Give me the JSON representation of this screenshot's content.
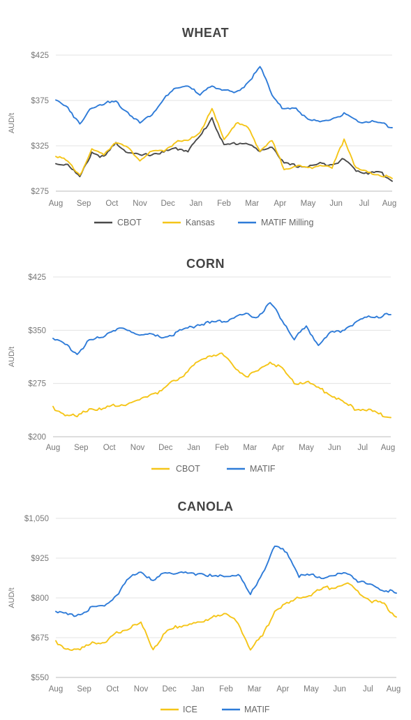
{
  "chart_data": [
    {
      "type": "line",
      "title": "WHEAT",
      "ylabel": "AUD/t",
      "ylim": [
        275,
        425
      ],
      "yticks": [
        275,
        325,
        375,
        425
      ],
      "ytick_labels": [
        "$275",
        "$325",
        "$375",
        "$425"
      ],
      "x_labels": [
        "Aug",
        "Sep",
        "Oct",
        "Nov",
        "Dec",
        "Jan",
        "Feb",
        "Mar",
        "Apr",
        "May",
        "Jun",
        "Jul",
        "Aug"
      ],
      "grid": true,
      "legend_position": "bottom",
      "series": [
        {
          "name": "CBOT",
          "color": "#4a4a4a",
          "values": [
            305,
            305,
            290,
            318,
            312,
            328,
            318,
            314,
            316,
            318,
            322,
            320,
            335,
            356,
            325,
            328,
            328,
            318,
            325,
            305,
            303,
            302,
            305,
            305,
            310,
            298,
            295,
            296,
            286
          ]
        },
        {
          "name": "Kansas",
          "color": "#f5c518",
          "values": [
            315,
            307,
            293,
            320,
            316,
            330,
            322,
            310,
            318,
            320,
            329,
            330,
            340,
            365,
            332,
            350,
            345,
            320,
            330,
            300,
            303,
            300,
            305,
            300,
            333,
            300,
            295,
            293,
            289
          ]
        },
        {
          "name": "MATIF Milling",
          "color": "#2e7bd8",
          "values": [
            375,
            368,
            348,
            368,
            372,
            373,
            362,
            350,
            360,
            377,
            388,
            392,
            380,
            392,
            386,
            383,
            395,
            412,
            382,
            365,
            366,
            355,
            350,
            355,
            360,
            352,
            352,
            350,
            345
          ]
        }
      ]
    },
    {
      "type": "line",
      "title": "CORN",
      "ylabel": "AUD/t",
      "ylim": [
        200,
        425
      ],
      "yticks": [
        200,
        275,
        350,
        425
      ],
      "ytick_labels": [
        "$200",
        "$275",
        "$350",
        "$425"
      ],
      "x_labels": [
        "Aug",
        "Sep",
        "Oct",
        "Nov",
        "Dec",
        "Jan",
        "Feb",
        "Mar",
        "Apr",
        "May",
        "Jun",
        "Jul",
        "Aug"
      ],
      "grid": true,
      "legend_position": "bottom",
      "series": [
        {
          "name": "CBOT",
          "color": "#f5c518",
          "values": [
            240,
            232,
            228,
            240,
            238,
            245,
            245,
            250,
            260,
            264,
            278,
            290,
            305,
            315,
            316,
            300,
            285,
            292,
            307,
            295,
            275,
            278,
            268,
            260,
            248,
            240,
            238,
            232,
            227
          ]
        },
        {
          "name": "MATIF",
          "color": "#2e7bd8",
          "values": [
            340,
            330,
            318,
            335,
            340,
            352,
            350,
            345,
            343,
            340,
            345,
            352,
            358,
            360,
            362,
            368,
            372,
            370,
            388,
            365,
            338,
            355,
            330,
            345,
            350,
            360,
            368,
            370,
            372
          ]
        }
      ]
    },
    {
      "type": "line",
      "title": "CANOLA",
      "ylabel": "AUD/t",
      "ylim": [
        550,
        1050
      ],
      "yticks": [
        550,
        675,
        800,
        925,
        1050
      ],
      "ytick_labels": [
        "$550",
        "$675",
        "$800",
        "$925",
        "$1,050"
      ],
      "x_labels": [
        "Aug",
        "Sep",
        "Oct",
        "Nov",
        "Dec",
        "Jan",
        "Feb",
        "Mar",
        "Apr",
        "May",
        "Jun",
        "Jul",
        "Aug"
      ],
      "grid": true,
      "legend_position": "bottom",
      "series": [
        {
          "name": "ICE",
          "color": "#f5c518",
          "values": [
            660,
            640,
            635,
            665,
            655,
            690,
            705,
            720,
            640,
            690,
            710,
            720,
            720,
            745,
            750,
            720,
            640,
            680,
            760,
            780,
            800,
            810,
            830,
            835,
            845,
            815,
            790,
            780,
            740
          ]
        },
        {
          "name": "MATIF",
          "color": "#2e7bd8",
          "values": [
            760,
            745,
            750,
            770,
            775,
            810,
            860,
            885,
            850,
            880,
            880,
            875,
            880,
            865,
            870,
            875,
            810,
            880,
            960,
            945,
            870,
            870,
            865,
            870,
            880,
            850,
            840,
            825,
            815
          ]
        }
      ]
    }
  ]
}
